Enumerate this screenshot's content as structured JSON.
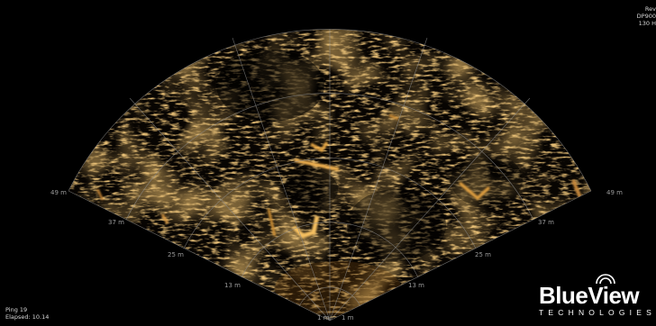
{
  "header": {
    "lines": [
      "Rev",
      "DP900",
      "130 H"
    ]
  },
  "status": {
    "ping": "Ping 19",
    "elapsed": "Elapsed: 10.14"
  },
  "range_labels": {
    "left": [
      "49 m",
      "37 m",
      "25 m",
      "13 m",
      "1 m"
    ],
    "right": [
      "49 m",
      "37 m",
      "25 m",
      "13 m",
      "1 m"
    ]
  },
  "logo": {
    "word": "BlueView",
    "sub": "TECHNOLOGIES"
  },
  "colors": {
    "background": "#000000",
    "echo": "#d08a28",
    "grid": "#8c8c8c"
  }
}
